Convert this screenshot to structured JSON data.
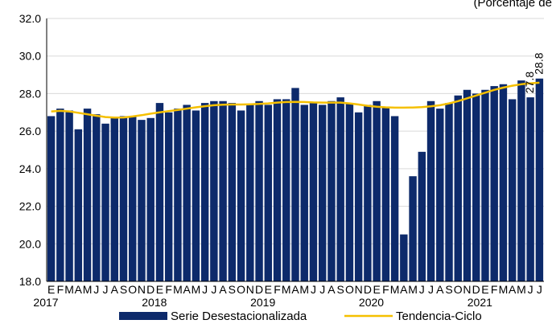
{
  "header_fragment": "(Porcentaje de",
  "chart_data": {
    "type": "bar",
    "ylim": [
      18,
      32
    ],
    "yticks": [
      "18.0",
      "20.0",
      "22.0",
      "24.0",
      "26.0",
      "28.0",
      "30.0",
      "32.0"
    ],
    "month_labels": [
      "E",
      "F",
      "M",
      "A",
      "M",
      "J",
      "J",
      "A",
      "S",
      "O",
      "N",
      "D"
    ],
    "years": [
      "2017",
      "2018",
      "2019",
      "2020",
      "2021"
    ],
    "grid": true,
    "legend_position": "bottom",
    "colors": {
      "bar": "#0d2a6b",
      "trend": "#f5c000",
      "grid": "#d9d9d9",
      "axis": "#000000"
    },
    "series": [
      {
        "name": "Serie Desestacionalizada",
        "type": "bar",
        "values": [
          26.8,
          27.2,
          27.1,
          26.1,
          27.2,
          26.9,
          26.4,
          26.7,
          26.8,
          26.8,
          26.6,
          26.7,
          27.5,
          27.0,
          27.2,
          27.4,
          27.1,
          27.5,
          27.6,
          27.6,
          27.5,
          27.1,
          27.4,
          27.6,
          27.4,
          27.7,
          27.7,
          28.3,
          27.4,
          27.5,
          27.4,
          27.6,
          27.8,
          27.5,
          27.0,
          27.4,
          27.6,
          27.3,
          26.8,
          20.5,
          23.6,
          24.9,
          27.6,
          27.2,
          27.5,
          27.9,
          28.2,
          28.0,
          28.2,
          28.4,
          28.5,
          27.7,
          28.7,
          27.8,
          28.8
        ]
      },
      {
        "name": "Tendencia-Ciclo",
        "type": "line",
        "values": [
          27.05,
          27.08,
          27.05,
          26.98,
          26.9,
          26.82,
          26.75,
          26.72,
          26.73,
          26.78,
          26.85,
          26.93,
          27.0,
          27.07,
          27.13,
          27.2,
          27.27,
          27.33,
          27.38,
          27.41,
          27.42,
          27.42,
          27.43,
          27.45,
          27.48,
          27.52,
          27.55,
          27.56,
          27.55,
          27.53,
          27.52,
          27.52,
          27.52,
          27.48,
          27.42,
          27.35,
          27.3,
          27.27,
          27.25,
          27.25,
          27.26,
          27.28,
          27.32,
          27.38,
          27.48,
          27.6,
          27.75,
          27.9,
          28.05,
          28.2,
          28.32,
          28.42,
          28.5,
          28.55,
          28.58
        ]
      }
    ],
    "data_labels": [
      {
        "index": 53,
        "text": "27.8"
      },
      {
        "index": 54,
        "text": "28.8"
      }
    ]
  }
}
